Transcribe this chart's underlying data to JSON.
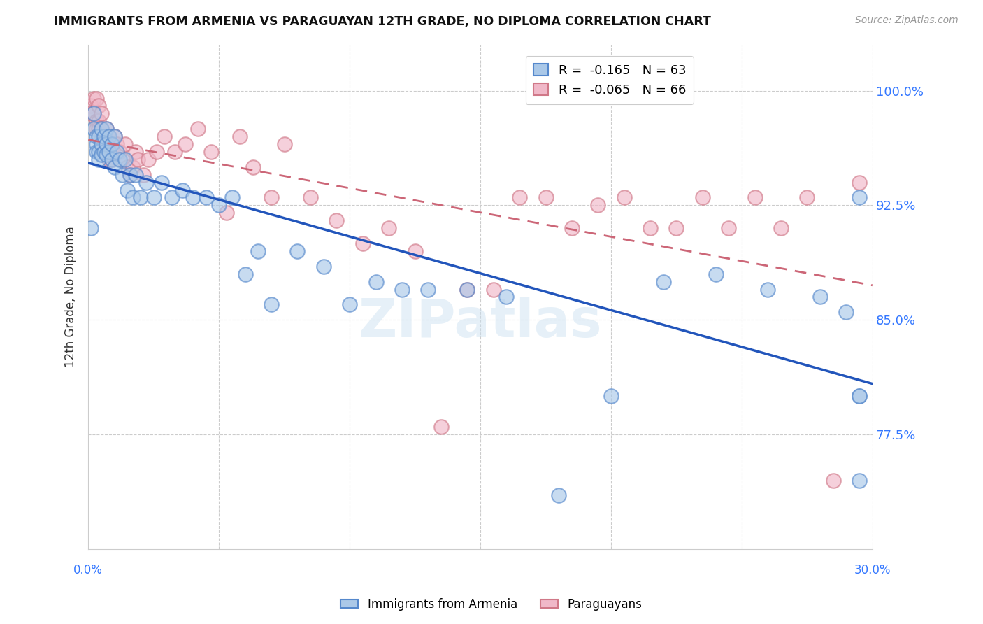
{
  "title": "IMMIGRANTS FROM ARMENIA VS PARAGUAYAN 12TH GRADE, NO DIPLOMA CORRELATION CHART",
  "source": "Source: ZipAtlas.com",
  "ylabel": "12th Grade, No Diploma",
  "ytick_labels": [
    "100.0%",
    "92.5%",
    "85.0%",
    "77.5%"
  ],
  "ytick_values": [
    1.0,
    0.925,
    0.85,
    0.775
  ],
  "xlim": [
    0.0,
    0.3
  ],
  "ylim": [
    0.7,
    1.03
  ],
  "watermark": "ZIPatlas",
  "blue_face": "#aac8e8",
  "blue_edge": "#5588cc",
  "pink_face": "#f0b8c8",
  "pink_edge": "#d07888",
  "blue_line": "#2255bb",
  "pink_line": "#cc6677",
  "armenia_x": [
    0.001,
    0.002,
    0.002,
    0.003,
    0.003,
    0.003,
    0.004,
    0.004,
    0.004,
    0.005,
    0.005,
    0.005,
    0.006,
    0.006,
    0.007,
    0.007,
    0.007,
    0.008,
    0.008,
    0.009,
    0.009,
    0.01,
    0.01,
    0.011,
    0.012,
    0.013,
    0.014,
    0.015,
    0.016,
    0.017,
    0.018,
    0.02,
    0.022,
    0.025,
    0.028,
    0.032,
    0.036,
    0.04,
    0.045,
    0.05,
    0.055,
    0.06,
    0.065,
    0.07,
    0.08,
    0.09,
    0.1,
    0.11,
    0.12,
    0.13,
    0.145,
    0.16,
    0.18,
    0.2,
    0.22,
    0.24,
    0.26,
    0.28,
    0.29,
    0.295,
    0.295,
    0.295,
    0.295
  ],
  "armenia_y": [
    0.91,
    0.975,
    0.985,
    0.965,
    0.97,
    0.96,
    0.97,
    0.96,
    0.955,
    0.975,
    0.965,
    0.958,
    0.97,
    0.96,
    0.975,
    0.965,
    0.958,
    0.97,
    0.96,
    0.965,
    0.955,
    0.97,
    0.95,
    0.96,
    0.955,
    0.945,
    0.955,
    0.935,
    0.945,
    0.93,
    0.945,
    0.93,
    0.94,
    0.93,
    0.94,
    0.93,
    0.935,
    0.93,
    0.93,
    0.925,
    0.93,
    0.88,
    0.895,
    0.86,
    0.895,
    0.885,
    0.86,
    0.875,
    0.87,
    0.87,
    0.87,
    0.865,
    0.735,
    0.8,
    0.875,
    0.88,
    0.87,
    0.865,
    0.855,
    0.8,
    0.8,
    0.745,
    0.93
  ],
  "paraguay_x": [
    0.001,
    0.001,
    0.002,
    0.002,
    0.003,
    0.003,
    0.003,
    0.004,
    0.004,
    0.004,
    0.005,
    0.005,
    0.005,
    0.006,
    0.006,
    0.007,
    0.007,
    0.008,
    0.008,
    0.009,
    0.009,
    0.01,
    0.011,
    0.012,
    0.013,
    0.014,
    0.015,
    0.016,
    0.017,
    0.018,
    0.019,
    0.021,
    0.023,
    0.026,
    0.029,
    0.033,
    0.037,
    0.042,
    0.047,
    0.053,
    0.058,
    0.063,
    0.07,
    0.075,
    0.085,
    0.095,
    0.105,
    0.115,
    0.125,
    0.135,
    0.145,
    0.155,
    0.165,
    0.175,
    0.185,
    0.195,
    0.205,
    0.215,
    0.225,
    0.235,
    0.245,
    0.255,
    0.265,
    0.275,
    0.285,
    0.295
  ],
  "paraguay_y": [
    0.99,
    0.985,
    0.995,
    0.985,
    0.995,
    0.98,
    0.975,
    0.99,
    0.98,
    0.975,
    0.985,
    0.975,
    0.965,
    0.97,
    0.96,
    0.975,
    0.96,
    0.97,
    0.955,
    0.965,
    0.955,
    0.97,
    0.965,
    0.96,
    0.955,
    0.965,
    0.95,
    0.945,
    0.95,
    0.96,
    0.955,
    0.945,
    0.955,
    0.96,
    0.97,
    0.96,
    0.965,
    0.975,
    0.96,
    0.92,
    0.97,
    0.95,
    0.93,
    0.965,
    0.93,
    0.915,
    0.9,
    0.91,
    0.895,
    0.78,
    0.87,
    0.87,
    0.93,
    0.93,
    0.91,
    0.925,
    0.93,
    0.91,
    0.91,
    0.93,
    0.91,
    0.93,
    0.91,
    0.93,
    0.745,
    0.94
  ]
}
